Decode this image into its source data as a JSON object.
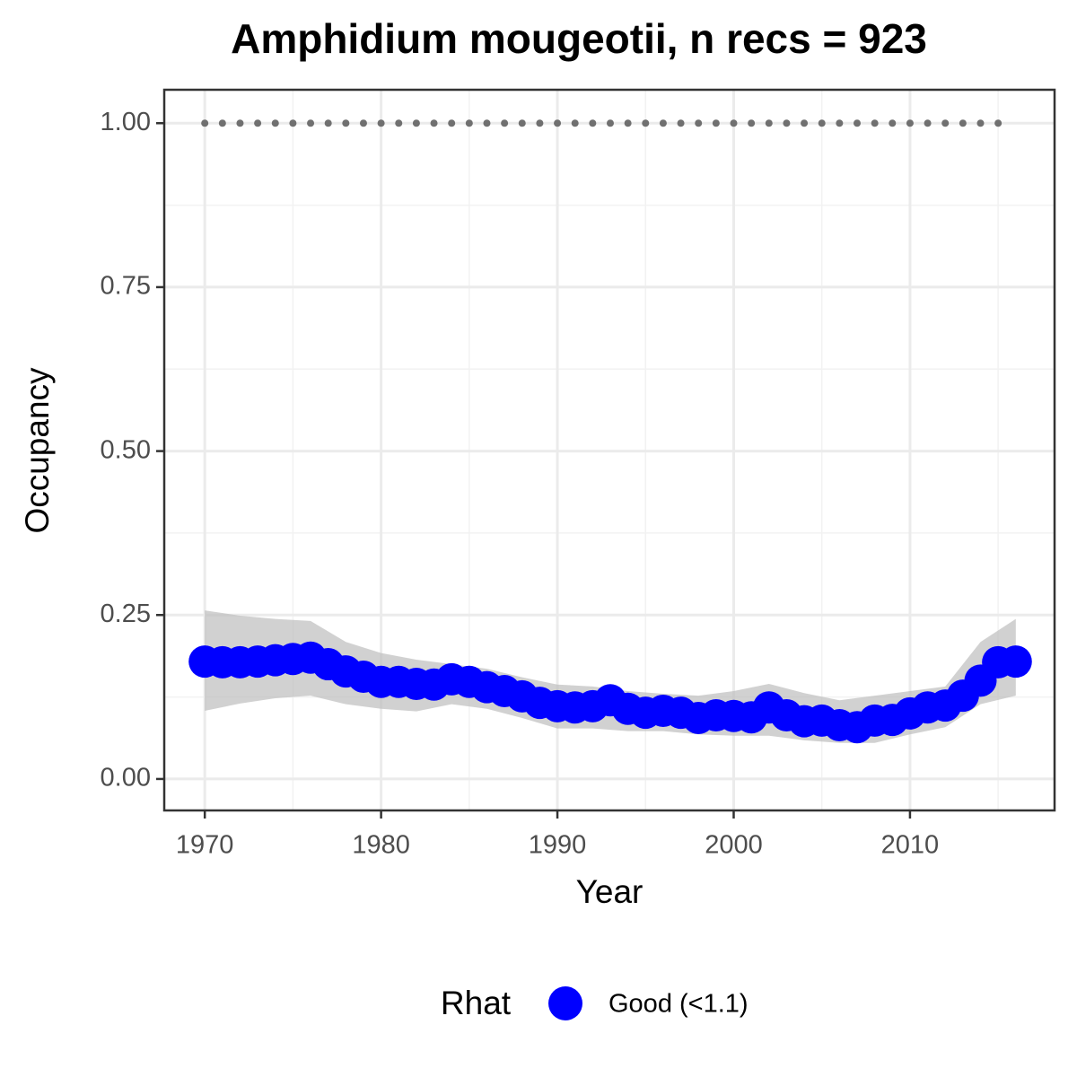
{
  "chart_data": {
    "type": "scatter",
    "title": "Amphidium mougeotii, n recs = 923",
    "x_label": "Year",
    "y_label": "Occupancy",
    "xlim": [
      1967.7,
      2018.2
    ],
    "ylim": [
      -0.048,
      1.051
    ],
    "xticks": [
      1970,
      1980,
      1990,
      2000,
      2010
    ],
    "yticks": [
      {
        "value": 0,
        "label": "0.00"
      },
      {
        "value": 0.25,
        "label": "0.25"
      },
      {
        "value": 0.5,
        "label": "0.50"
      },
      {
        "value": 0.75,
        "label": "0.75"
      },
      {
        "value": 1,
        "label": "1.00"
      }
    ],
    "grid": true,
    "legend_title": "Rhat",
    "legend_position": "bottom",
    "band": {
      "color": "#bebebe",
      "x": [
        1970,
        1972,
        1974,
        1976,
        1978,
        1980,
        1982,
        1984,
        1986,
        1988,
        1990,
        1992,
        1994,
        1996,
        1998,
        2000,
        2002,
        2004,
        2006,
        2008,
        2010,
        2012,
        2014,
        2016
      ],
      "lower": [
        0.104,
        0.115,
        0.123,
        0.127,
        0.114,
        0.107,
        0.103,
        0.114,
        0.107,
        0.093,
        0.077,
        0.077,
        0.073,
        0.073,
        0.068,
        0.066,
        0.066,
        0.059,
        0.055,
        0.055,
        0.068,
        0.079,
        0.114,
        0.127
      ],
      "upper": [
        0.257,
        0.249,
        0.244,
        0.241,
        0.209,
        0.192,
        0.182,
        0.175,
        0.168,
        0.155,
        0.144,
        0.141,
        0.134,
        0.13,
        0.127,
        0.134,
        0.145,
        0.131,
        0.12,
        0.127,
        0.134,
        0.141,
        0.209,
        0.244
      ]
    },
    "series": [
      {
        "color": "#707070",
        "size": "small",
        "x": [
          1970,
          1971,
          1972,
          1973,
          1974,
          1975,
          1976,
          1977,
          1978,
          1979,
          1980,
          1981,
          1982,
          1983,
          1984,
          1985,
          1986,
          1987,
          1988,
          1989,
          1990,
          1991,
          1992,
          1993,
          1994,
          1995,
          1996,
          1997,
          1998,
          1999,
          2000,
          2001,
          2002,
          2003,
          2004,
          2005,
          2006,
          2007,
          2008,
          2009,
          2010,
          2011,
          2012,
          2013,
          2014,
          2015
        ],
        "values": [
          1,
          1,
          1,
          1,
          1,
          1,
          1,
          1,
          1,
          1,
          1,
          1,
          1,
          1,
          1,
          1,
          1,
          1,
          1,
          1,
          1,
          1,
          1,
          1,
          1,
          1,
          1,
          1,
          1,
          1,
          1,
          1,
          1,
          1,
          1,
          1,
          1,
          1,
          1,
          1,
          1,
          1,
          1,
          1,
          1,
          1
        ]
      },
      {
        "name": "Good (<1.1)",
        "color": "#0000ff",
        "size": "large",
        "x": [
          1970,
          1971,
          1972,
          1973,
          1974,
          1975,
          1976,
          1977,
          1978,
          1979,
          1980,
          1981,
          1982,
          1983,
          1984,
          1985,
          1986,
          1987,
          1988,
          1989,
          1990,
          1991,
          1992,
          1993,
          1994,
          1995,
          1996,
          1997,
          1998,
          1999,
          2000,
          2001,
          2002,
          2003,
          2004,
          2005,
          2006,
          2007,
          2008,
          2009,
          2010,
          2011,
          2012,
          2013,
          2014,
          2015,
          2016
        ],
        "values": [
          0.179,
          0.178,
          0.178,
          0.179,
          0.181,
          0.183,
          0.185,
          0.175,
          0.164,
          0.156,
          0.148,
          0.148,
          0.145,
          0.144,
          0.152,
          0.148,
          0.14,
          0.134,
          0.126,
          0.116,
          0.111,
          0.109,
          0.111,
          0.12,
          0.107,
          0.101,
          0.104,
          0.101,
          0.093,
          0.097,
          0.096,
          0.094,
          0.109,
          0.097,
          0.088,
          0.089,
          0.082,
          0.079,
          0.089,
          0.09,
          0.1,
          0.109,
          0.112,
          0.127,
          0.15,
          0.178,
          0.179
        ]
      }
    ]
  }
}
